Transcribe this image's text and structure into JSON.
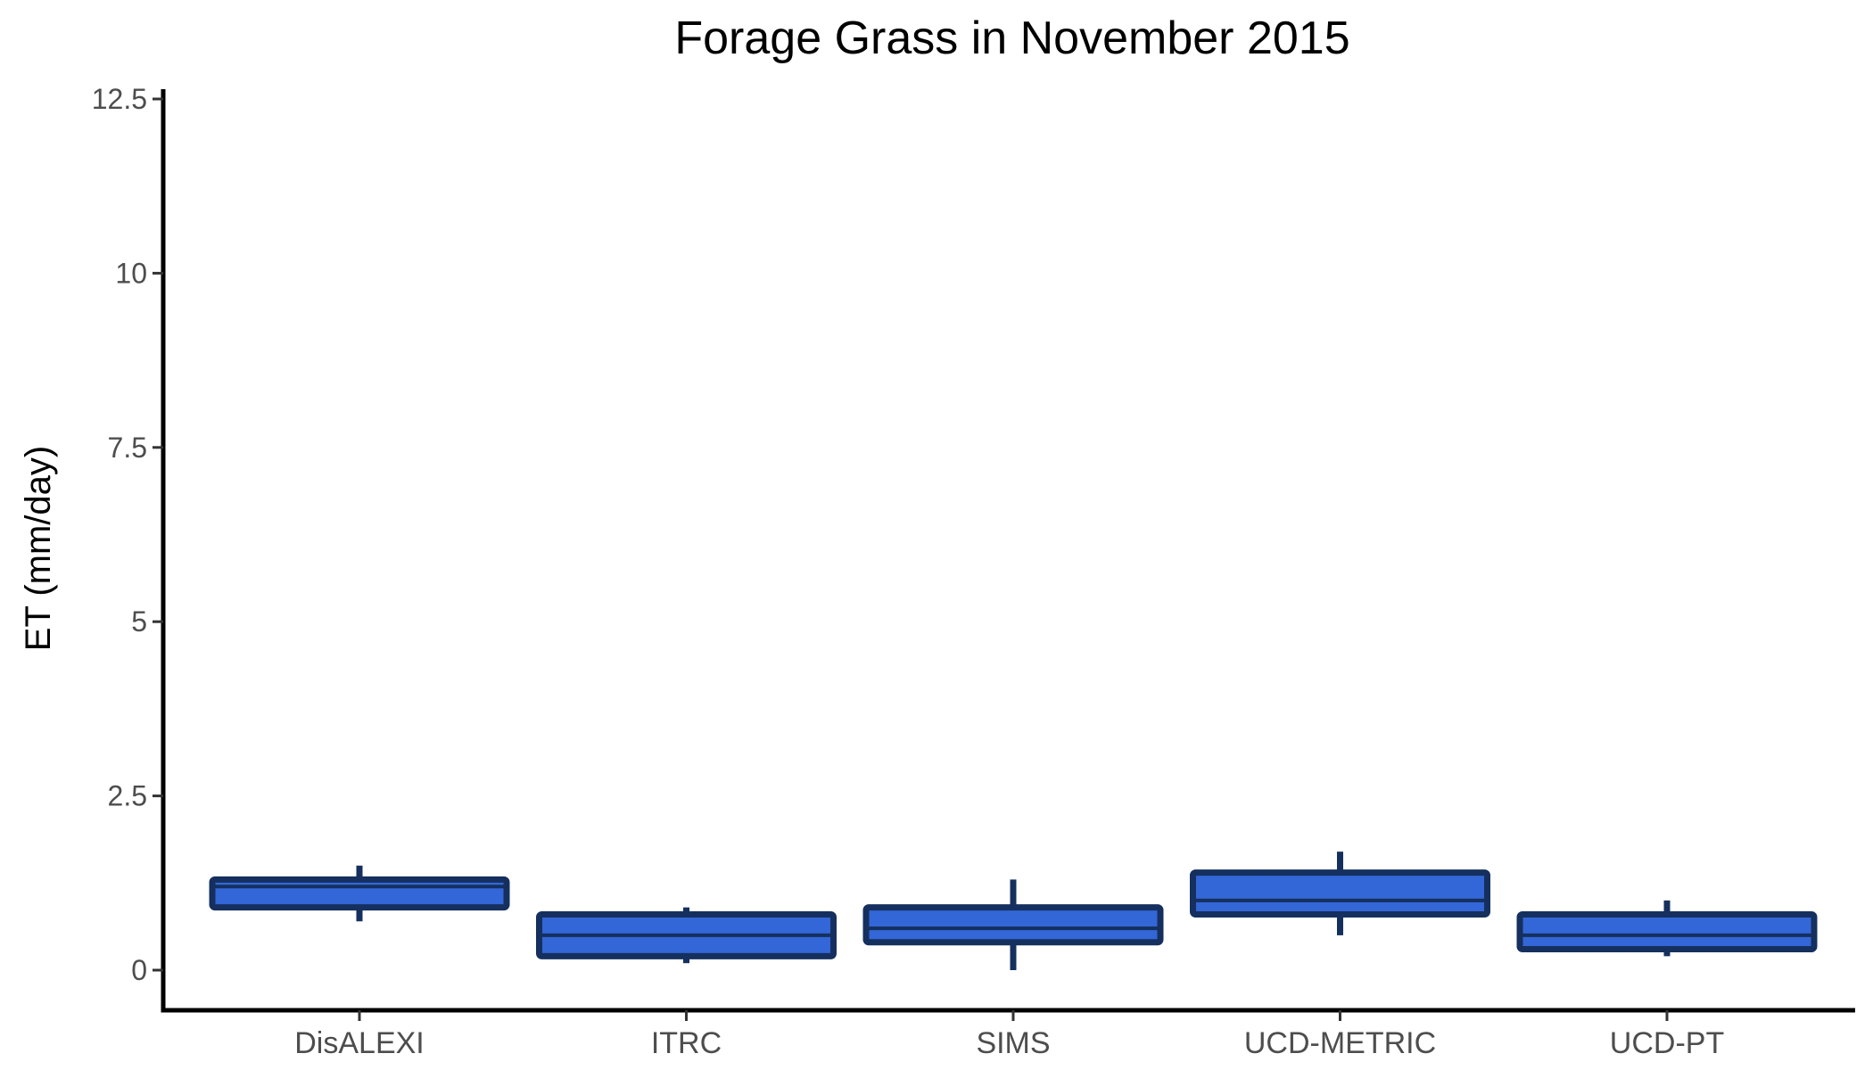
{
  "chart_data": {
    "type": "boxplot",
    "title": "Forage Grass in November 2015",
    "xlabel": "",
    "ylabel": "ET (mm/day)",
    "ylim": [
      -0.6,
      12.6
    ],
    "yticks": [
      0,
      2.5,
      5,
      7.5,
      10,
      12.5
    ],
    "ytick_labels": [
      "0",
      "2.5",
      "5",
      "7.5",
      "10",
      "12.5"
    ],
    "categories": [
      "DisALEXI",
      "ITRC",
      "SIMS",
      "UCD-METRIC",
      "UCD-PT"
    ],
    "boxes": [
      {
        "category": "DisALEXI",
        "whisker_low": 0.7,
        "q1": 0.9,
        "median": 1.2,
        "q3": 1.3,
        "whisker_high": 1.5
      },
      {
        "category": "ITRC",
        "whisker_low": 0.1,
        "q1": 0.2,
        "median": 0.5,
        "q3": 0.8,
        "whisker_high": 0.9
      },
      {
        "category": "SIMS",
        "whisker_low": 0.0,
        "q1": 0.4,
        "median": 0.6,
        "q3": 0.9,
        "whisker_high": 1.3
      },
      {
        "category": "UCD-METRIC",
        "whisker_low": 0.5,
        "q1": 0.8,
        "median": 1.0,
        "q3": 1.4,
        "whisker_high": 1.7
      },
      {
        "category": "UCD-PT",
        "whisker_low": 0.2,
        "q1": 0.3,
        "median": 0.5,
        "q3": 0.8,
        "whisker_high": 1.0
      }
    ],
    "grid": false,
    "legend": "none",
    "colors": {
      "box_fill": "#3366d6",
      "box_outline": "#15305e",
      "axis": "#000000"
    }
  }
}
